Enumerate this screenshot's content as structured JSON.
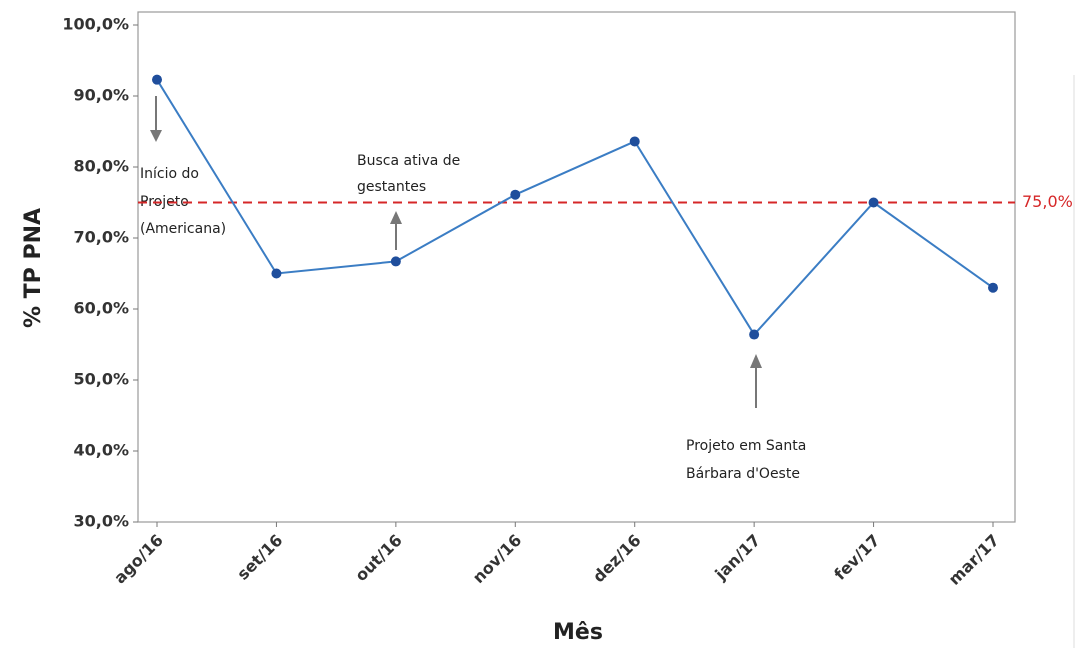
{
  "chart_data": {
    "type": "line",
    "x_label": "Mês",
    "y_label": "% TP PNA",
    "categories": [
      "ago/16",
      "set/16",
      "out/16",
      "nov/16",
      "dez/16",
      "jan/17",
      "fev/17",
      "mar/17"
    ],
    "series": [
      {
        "color": "#3b7dc4",
        "marker_color": "#1f4e9c",
        "values": [
          92.3,
          65.0,
          66.7,
          76.1,
          83.6,
          56.4,
          75.0,
          63.0
        ]
      }
    ],
    "ylim": [
      30,
      100
    ],
    "yticks": [
      {
        "value": 30,
        "label": "30,0%"
      },
      {
        "value": 40,
        "label": "40,0%"
      },
      {
        "value": 50,
        "label": "50,0%"
      },
      {
        "value": 60,
        "label": "60,0%"
      },
      {
        "value": 70,
        "label": "70,0%"
      },
      {
        "value": 80,
        "label": "80,0%"
      },
      {
        "value": 90,
        "label": "90,0%"
      },
      {
        "value": 100,
        "label": "100,0%"
      }
    ],
    "grid": false,
    "reference_line": {
      "value": 75,
      "label": "75,0%",
      "color": "#d62728"
    },
    "annotations": [
      {
        "lines": [
          "Início do",
          "Projeto",
          "(Americana)"
        ]
      },
      {
        "lines": [
          "Busca ativa de",
          "gestantes"
        ]
      },
      {
        "lines": [
          "Projeto em Santa",
          "Bárbara d'Oeste"
        ]
      }
    ]
  }
}
